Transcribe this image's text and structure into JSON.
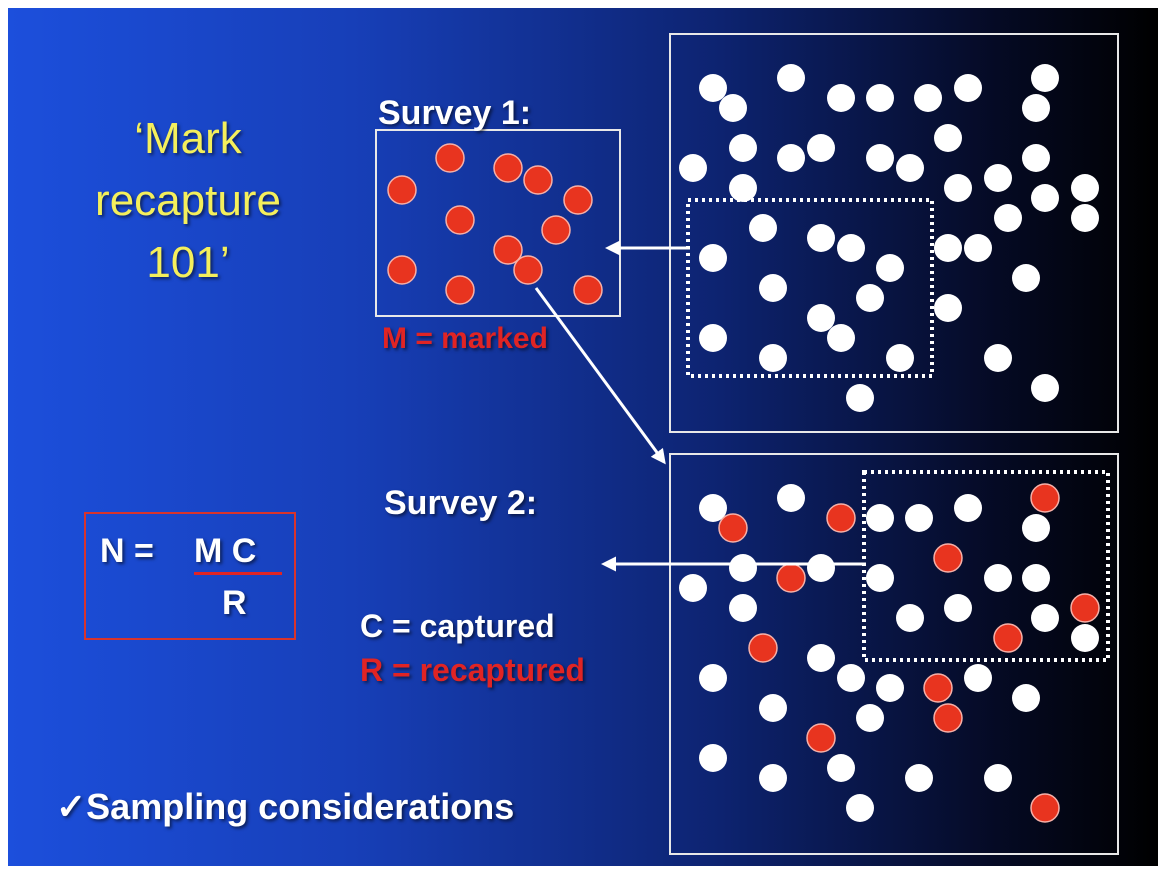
{
  "title": {
    "lines": [
      "‘Mark",
      "recapture",
      "101’"
    ]
  },
  "survey1": {
    "label": "Survey 1:",
    "marked_label": "M = marked",
    "sample_count": 13
  },
  "survey2": {
    "label": "Survey 2:",
    "captured_label": "C = captured",
    "recaptured_label": "R = recaptured"
  },
  "formula": {
    "lhs": "N =",
    "numerator": "M C",
    "denominator": "R"
  },
  "footer": "✓Sampling considerations",
  "colors": {
    "title": "#f4ef5c",
    "marked": "#e8341f",
    "unmarked": "#ffffff",
    "accent_red": "#e02424",
    "background_start": "#1c4fdc",
    "background_end": "#000000"
  }
}
